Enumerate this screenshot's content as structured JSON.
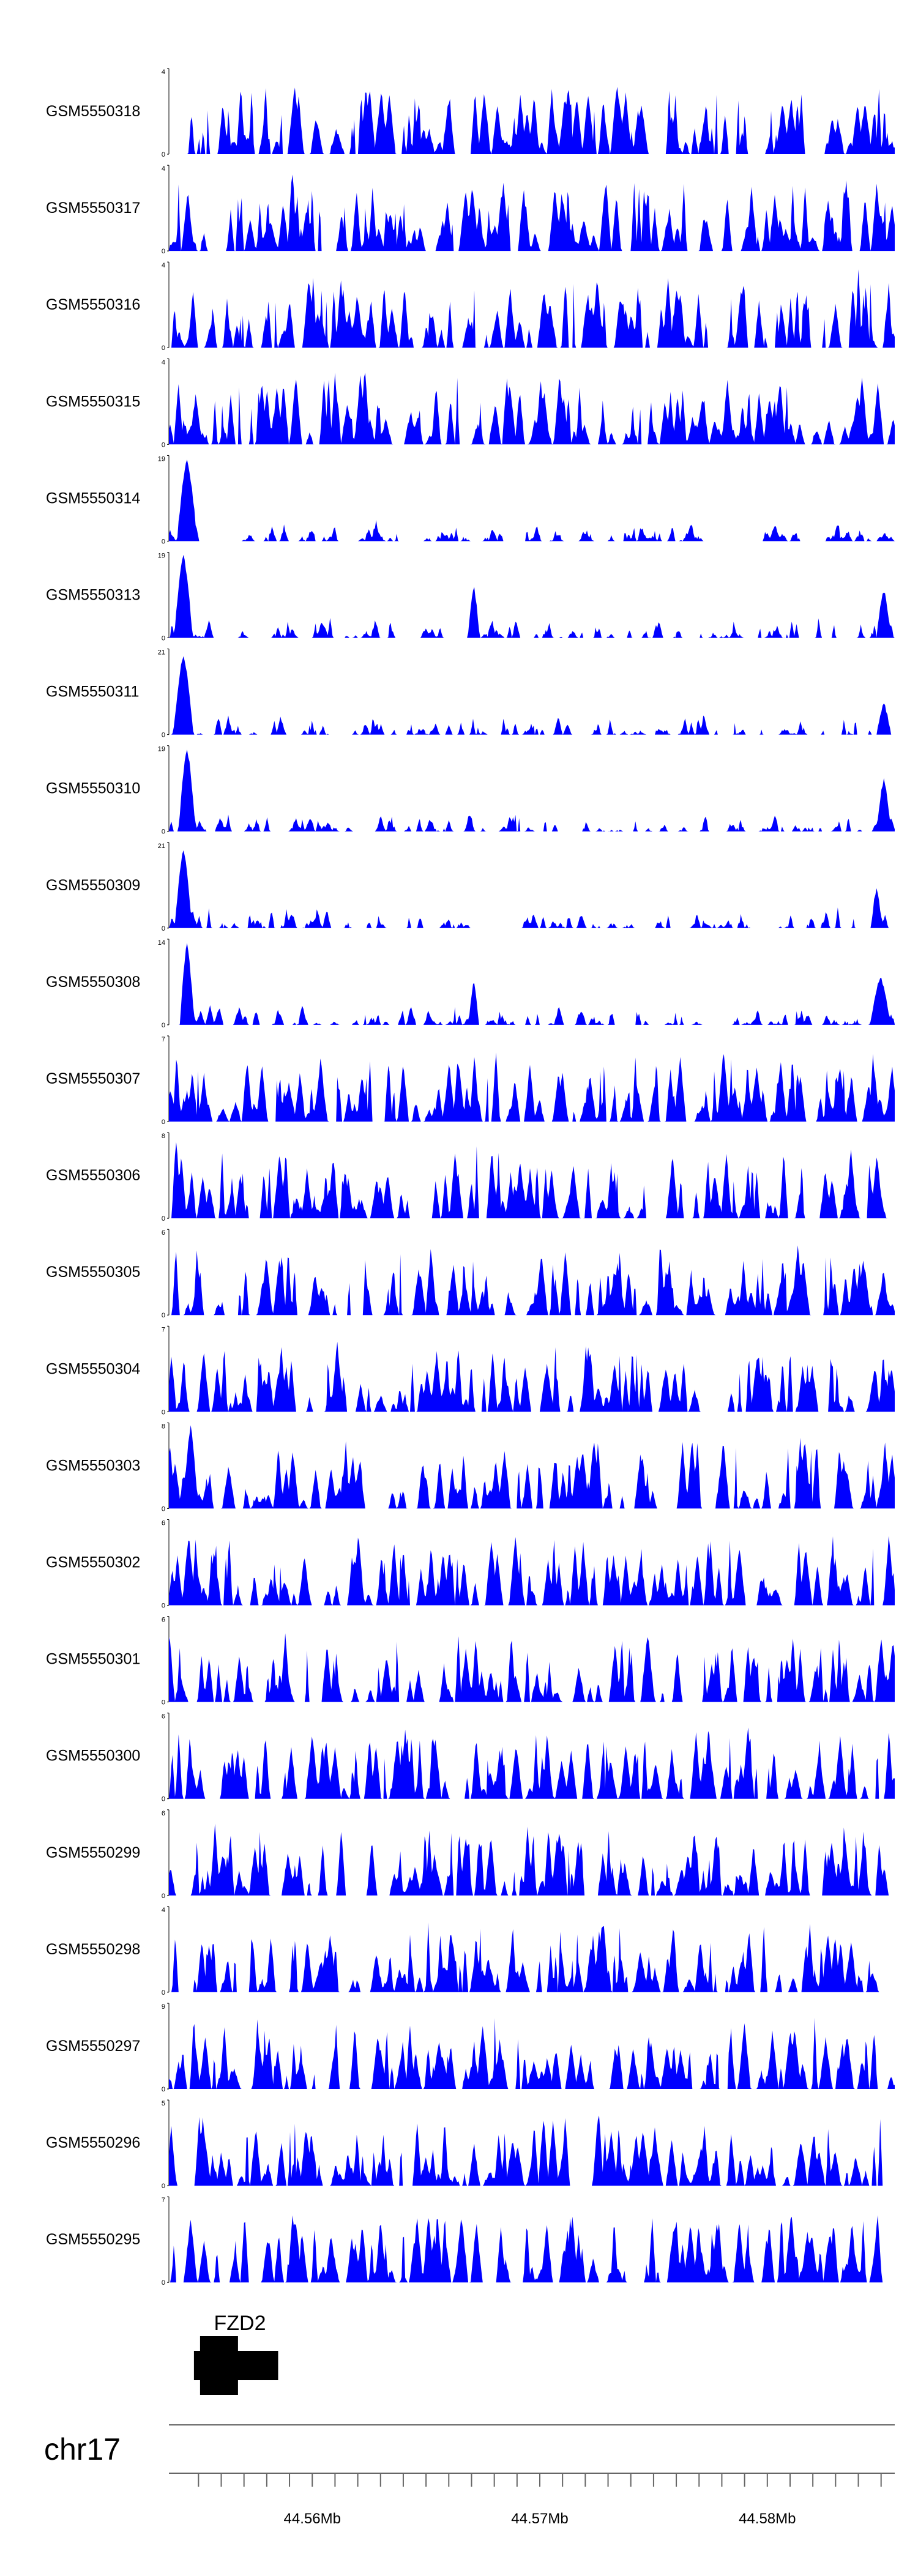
{
  "chart_data": {
    "type": "area",
    "color": "#0000ff",
    "tracks": [
      {
        "name": "GSM5550318",
        "ymin": 0,
        "ymax": 4,
        "seed": 318,
        "peaks": []
      },
      {
        "name": "GSM5550317",
        "ymin": 0,
        "ymax": 4,
        "seed": 317,
        "peaks": [
          [
            0.17,
            0.9,
            0.006
          ]
        ]
      },
      {
        "name": "GSM5550316",
        "ymin": 0,
        "ymax": 4,
        "seed": 316,
        "peaks": [
          [
            0.95,
            0.9,
            0.004
          ]
        ]
      },
      {
        "name": "GSM5550315",
        "ymin": 0,
        "ymax": 4,
        "seed": 315,
        "peaks": [
          [
            0.27,
            0.85,
            0.006
          ]
        ]
      },
      {
        "name": "GSM5550314",
        "ymin": 0,
        "ymax": 19,
        "seed": 314,
        "peaks": [
          [
            0.025,
            0.95,
            0.014
          ]
        ]
      },
      {
        "name": "GSM5550313",
        "ymin": 0,
        "ymax": 19,
        "seed": 313,
        "peaks": [
          [
            0.02,
            0.95,
            0.013
          ],
          [
            0.42,
            0.6,
            0.008
          ],
          [
            0.985,
            0.55,
            0.01
          ]
        ]
      },
      {
        "name": "GSM5550311",
        "ymin": 0,
        "ymax": 21,
        "seed": 311,
        "peaks": [
          [
            0.02,
            0.92,
            0.014
          ],
          [
            0.985,
            0.35,
            0.01
          ]
        ]
      },
      {
        "name": "GSM5550310",
        "ymin": 0,
        "ymax": 19,
        "seed": 310,
        "peaks": [
          [
            0.025,
            0.95,
            0.012
          ],
          [
            0.985,
            0.6,
            0.01
          ]
        ]
      },
      {
        "name": "GSM5550309",
        "ymin": 0,
        "ymax": 21,
        "seed": 309,
        "peaks": [
          [
            0.02,
            0.92,
            0.012
          ],
          [
            0.975,
            0.45,
            0.008
          ]
        ]
      },
      {
        "name": "GSM5550308",
        "ymin": 0,
        "ymax": 14,
        "seed": 308,
        "peaks": [
          [
            0.025,
            0.95,
            0.01
          ],
          [
            0.42,
            0.5,
            0.007
          ],
          [
            0.98,
            0.55,
            0.014
          ]
        ]
      },
      {
        "name": "GSM5550307",
        "ymin": 0,
        "ymax": 7,
        "seed": 307,
        "peaks": []
      },
      {
        "name": "GSM5550306",
        "ymin": 0,
        "ymax": 8,
        "seed": 306,
        "peaks": [
          [
            0.01,
            0.9,
            0.006
          ]
        ]
      },
      {
        "name": "GSM5550305",
        "ymin": 0,
        "ymax": 6,
        "seed": 305,
        "peaks": []
      },
      {
        "name": "GSM5550304",
        "ymin": 0,
        "ymax": 7,
        "seed": 304,
        "peaks": []
      },
      {
        "name": "GSM5550303",
        "ymin": 0,
        "ymax": 8,
        "seed": 303,
        "peaks": [
          [
            0.03,
            0.95,
            0.01
          ]
        ]
      },
      {
        "name": "GSM5550302",
        "ymin": 0,
        "ymax": 6,
        "seed": 302,
        "peaks": []
      },
      {
        "name": "GSM5550301",
        "ymin": 0,
        "ymax": 6,
        "seed": 301,
        "peaks": []
      },
      {
        "name": "GSM5550300",
        "ymin": 0,
        "ymax": 6,
        "seed": 300,
        "peaks": []
      },
      {
        "name": "GSM5550299",
        "ymin": 0,
        "ymax": 6,
        "seed": 299,
        "peaks": []
      },
      {
        "name": "GSM5550298",
        "ymin": 0,
        "ymax": 4,
        "seed": 298,
        "peaks": []
      },
      {
        "name": "GSM5550297",
        "ymin": 0,
        "ymax": 9,
        "seed": 297,
        "peaks": []
      },
      {
        "name": "GSM5550296",
        "ymin": 0,
        "ymax": 5,
        "seed": 296,
        "peaks": []
      },
      {
        "name": "GSM5550295",
        "ymin": 0,
        "ymax": 7,
        "seed": 295,
        "peaks": []
      }
    ],
    "gene": {
      "name": "FZD2",
      "start_mb": 44.5548,
      "end_mb": 44.5585
    },
    "chromosome": "chr17",
    "xlim_mb": [
      44.5537,
      44.5856
    ],
    "x_ticks_mb": [
      44.555,
      44.556,
      44.557,
      44.558,
      44.559,
      44.56,
      44.561,
      44.562,
      44.563,
      44.564,
      44.565,
      44.566,
      44.567,
      44.568,
      44.569,
      44.57,
      44.571,
      44.572,
      44.573,
      44.574,
      44.575,
      44.576,
      44.577,
      44.578,
      44.579,
      44.58,
      44.581,
      44.582,
      44.583,
      44.584,
      44.585
    ],
    "x_tick_labels": [
      {
        "value": 44.56,
        "label": "44.56Mb"
      },
      {
        "value": 44.57,
        "label": "44.57Mb"
      },
      {
        "value": 44.58,
        "label": "44.58Mb"
      }
    ]
  }
}
